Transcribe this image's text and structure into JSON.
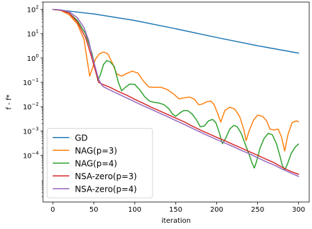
{
  "chart_data": {
    "type": "line",
    "title": "",
    "xlabel": "iteration",
    "ylabel": "f - f*",
    "xlim": [
      -12,
      313
    ],
    "ylim": [
      1.2e-06,
      200
    ],
    "yscale": "log",
    "grid": false,
    "legend_position": "lower-left",
    "x_ticks": [
      0,
      50,
      100,
      150,
      200,
      250,
      300
    ],
    "x_tick_labels": [
      "0",
      "50",
      "100",
      "150",
      "200",
      "250",
      "300"
    ],
    "y_ticks": [
      100,
      10,
      1,
      0.1,
      0.01,
      0.001,
      0.0001
    ],
    "y_tick_labels": [
      {
        "base": "10",
        "exp": "2"
      },
      {
        "base": "10",
        "exp": "1"
      },
      {
        "base": "10",
        "exp": "0"
      },
      {
        "base": "10",
        "exp": "−1"
      },
      {
        "base": "10",
        "exp": "−2"
      },
      {
        "base": "10",
        "exp": "−3"
      },
      {
        "base": "10",
        "exp": "−4"
      }
    ],
    "series": [
      {
        "name": "GD",
        "color": "#1f77b4",
        "points": [
          [
            0,
            100
          ],
          [
            20,
            85
          ],
          [
            50,
            65
          ],
          [
            100,
            35
          ],
          [
            150,
            16
          ],
          [
            200,
            7
          ],
          [
            250,
            3.2
          ],
          [
            300,
            1.6
          ]
        ]
      },
      {
        "name": "NAG(p=3)",
        "color": "#ff7f0e",
        "points": [
          [
            0,
            100
          ],
          [
            10,
            90
          ],
          [
            20,
            60
          ],
          [
            30,
            25
          ],
          [
            38,
            6
          ],
          [
            42,
            0.8
          ],
          [
            45,
            0.18
          ],
          [
            48,
            0.35
          ],
          [
            52,
            0.9
          ],
          [
            57,
            1.5
          ],
          [
            62,
            1.75
          ],
          [
            67,
            1.5
          ],
          [
            72,
            0.7
          ],
          [
            78,
            0.22
          ],
          [
            84,
            0.18
          ],
          [
            90,
            0.23
          ],
          [
            97,
            0.29
          ],
          [
            104,
            0.24
          ],
          [
            110,
            0.12
          ],
          [
            117,
            0.065
          ],
          [
            124,
            0.062
          ],
          [
            132,
            0.063
          ],
          [
            140,
            0.05
          ],
          [
            148,
            0.032
          ],
          [
            154,
            0.021
          ],
          [
            160,
            0.023
          ],
          [
            167,
            0.025
          ],
          [
            173,
            0.02
          ],
          [
            178,
            0.012
          ],
          [
            183,
            0.013
          ],
          [
            188,
            0.016
          ],
          [
            193,
            0.017
          ],
          [
            197,
            0.012
          ],
          [
            202,
            0.0045
          ],
          [
            205,
            0.0023
          ],
          [
            210,
            0.007
          ],
          [
            216,
            0.0095
          ],
          [
            222,
            0.008
          ],
          [
            228,
            0.004
          ],
          [
            233,
            0.0012
          ],
          [
            236,
            0.0004
          ],
          [
            240,
            0.0011
          ],
          [
            245,
            0.0028
          ],
          [
            250,
            0.0045
          ],
          [
            256,
            0.004
          ],
          [
            261,
            0.0026
          ],
          [
            265,
            0.0012
          ],
          [
            270,
            0.0011
          ],
          [
            275,
            0.0012
          ],
          [
            279,
            0.0006
          ],
          [
            283,
            0.00015
          ],
          [
            287,
            0.0007
          ],
          [
            292,
            0.0022
          ],
          [
            297,
            0.0026
          ],
          [
            300,
            0.0024
          ]
        ]
      },
      {
        "name": "NAG(p=4)",
        "color": "#2ca02c",
        "points": [
          [
            0,
            100
          ],
          [
            10,
            95
          ],
          [
            20,
            70
          ],
          [
            30,
            35
          ],
          [
            40,
            10
          ],
          [
            48,
            1.5
          ],
          [
            52,
            0.35
          ],
          [
            55,
            0.12
          ],
          [
            58,
            0.2
          ],
          [
            62,
            0.55
          ],
          [
            66,
            0.78
          ],
          [
            70,
            0.7
          ],
          [
            75,
            0.45
          ],
          [
            80,
            0.1
          ],
          [
            84,
            0.045
          ],
          [
            88,
            0.06
          ],
          [
            94,
            0.085
          ],
          [
            100,
            0.082
          ],
          [
            106,
            0.05
          ],
          [
            112,
            0.026
          ],
          [
            118,
            0.017
          ],
          [
            124,
            0.015
          ],
          [
            130,
            0.014
          ],
          [
            136,
            0.012
          ],
          [
            142,
            0.008
          ],
          [
            146,
            0.005
          ],
          [
            150,
            0.004
          ],
          [
            155,
            0.0055
          ],
          [
            160,
            0.007
          ],
          [
            165,
            0.0068
          ],
          [
            170,
            0.005
          ],
          [
            175,
            0.003
          ],
          [
            180,
            0.0015
          ],
          [
            185,
            0.0016
          ],
          [
            190,
            0.0026
          ],
          [
            195,
            0.003
          ],
          [
            199,
            0.0022
          ],
          [
            203,
            0.0009
          ],
          [
            207,
            0.0003
          ],
          [
            211,
            0.0005
          ],
          [
            216,
            0.0012
          ],
          [
            221,
            0.0017
          ],
          [
            225,
            0.0015
          ],
          [
            230,
            0.0008
          ],
          [
            235,
            0.00028
          ],
          [
            240,
            0.0001
          ],
          [
            243,
            5e-05
          ],
          [
            246,
            3e-05
          ],
          [
            249,
            6e-05
          ],
          [
            253,
            0.0002
          ],
          [
            258,
            0.0005
          ],
          [
            263,
            0.0008
          ],
          [
            268,
            0.0007
          ],
          [
            273,
            0.0003
          ],
          [
            277,
            0.0001
          ],
          [
            280,
            4e-05
          ],
          [
            283,
            2.5e-05
          ],
          [
            286,
            4e-05
          ],
          [
            291,
            0.00012
          ],
          [
            296,
            0.00022
          ],
          [
            300,
            0.00029
          ]
        ]
      },
      {
        "name": "NSA-zero(p=3)",
        "color": "#d62728",
        "points": [
          [
            0,
            100
          ],
          [
            10,
            92
          ],
          [
            20,
            70
          ],
          [
            30,
            30
          ],
          [
            40,
            7
          ],
          [
            47,
            1.2
          ],
          [
            52,
            0.3
          ],
          [
            56,
            0.1
          ],
          [
            60,
            0.085
          ],
          [
            70,
            0.062
          ],
          [
            80,
            0.042
          ],
          [
            90,
            0.03
          ],
          [
            100,
            0.02
          ],
          [
            110,
            0.014
          ],
          [
            120,
            0.0095
          ],
          [
            130,
            0.0068
          ],
          [
            140,
            0.0048
          ],
          [
            150,
            0.0034
          ],
          [
            160,
            0.0024
          ],
          [
            170,
            0.0016
          ],
          [
            180,
            0.0011
          ],
          [
            190,
            0.00078
          ],
          [
            200,
            0.00055
          ],
          [
            210,
            0.0004
          ],
          [
            220,
            0.00028
          ],
          [
            230,
            0.0002
          ],
          [
            240,
            0.00014
          ],
          [
            250,
            0.0001
          ],
          [
            260,
            7e-05
          ],
          [
            270,
            5e-05
          ],
          [
            280,
            3.2e-05
          ],
          [
            290,
            2.2e-05
          ],
          [
            300,
            1.65e-05
          ]
        ]
      },
      {
        "name": "NSA-zero(p=4)",
        "color": "#9467bd",
        "points": [
          [
            0,
            100
          ],
          [
            10,
            95
          ],
          [
            20,
            80
          ],
          [
            30,
            45
          ],
          [
            38,
            18
          ],
          [
            44,
            5
          ],
          [
            48,
            1.2
          ],
          [
            52,
            0.4
          ],
          [
            56,
            0.13
          ],
          [
            60,
            0.075
          ],
          [
            62,
            0.065
          ],
          [
            70,
            0.048
          ],
          [
            80,
            0.033
          ],
          [
            90,
            0.023
          ],
          [
            100,
            0.016
          ],
          [
            110,
            0.011
          ],
          [
            120,
            0.0078
          ],
          [
            130,
            0.0055
          ],
          [
            140,
            0.0039
          ],
          [
            150,
            0.0027
          ],
          [
            160,
            0.0019
          ],
          [
            170,
            0.0013
          ],
          [
            180,
            0.0009
          ],
          [
            190,
            0.00063
          ],
          [
            200,
            0.00045
          ],
          [
            210,
            0.00032
          ],
          [
            220,
            0.00023
          ],
          [
            230,
            0.00016
          ],
          [
            240,
            0.000115
          ],
          [
            250,
            8e-05
          ],
          [
            260,
            5.5e-05
          ],
          [
            270,
            4e-05
          ],
          [
            280,
            2.7e-05
          ],
          [
            290,
            1.9e-05
          ],
          [
            300,
            1.35e-05
          ]
        ]
      }
    ]
  }
}
